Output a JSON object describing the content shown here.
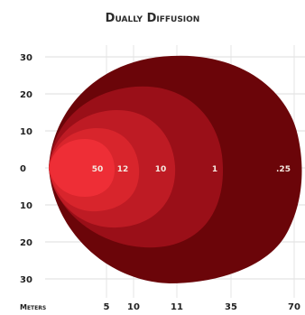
{
  "chart_data": {
    "type": "area",
    "title": "Dually Diffusion",
    "xlabel": "Meters",
    "ylabel": "",
    "x_ticks": [
      "5",
      "10",
      "11",
      "35",
      "70"
    ],
    "y_ticks": [
      "30",
      "20",
      "10",
      "0",
      "10",
      "20",
      "30"
    ],
    "ylim": [
      -30,
      30
    ],
    "grid": true,
    "legend": "none",
    "series": [
      {
        "value": "50",
        "color": "#ee2e36"
      },
      {
        "value": "12",
        "color": "#d8252c"
      },
      {
        "value": "10",
        "color": "#be1b24"
      },
      {
        "value": "1",
        "color": "#9a0f18"
      },
      {
        "value": ".25",
        "color": "#6b0509"
      }
    ]
  }
}
